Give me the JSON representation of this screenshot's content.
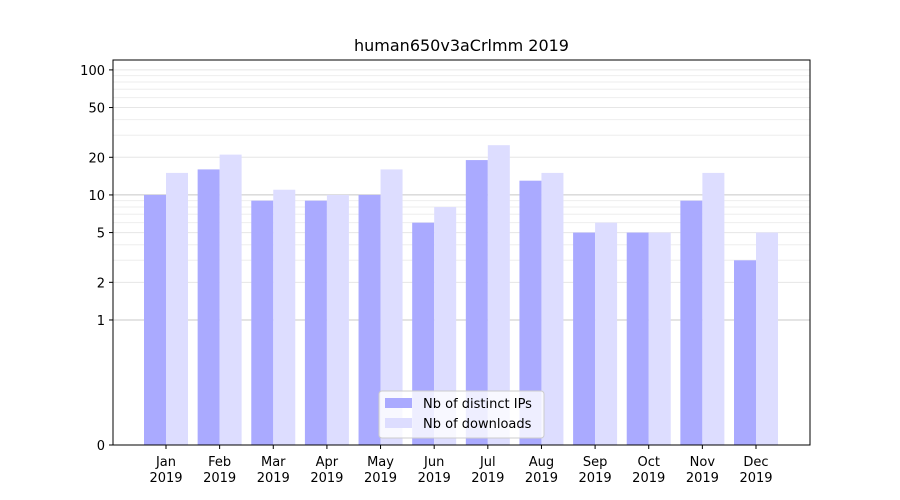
{
  "chart_data": {
    "type": "bar",
    "title": "human650v3aCrlmm 2019",
    "xlabel": "",
    "ylabel": "",
    "yscale": "symlog",
    "ylim": [
      0,
      120
    ],
    "yticks": [
      0,
      1,
      2,
      5,
      10,
      20,
      50,
      100
    ],
    "grid": "horizontal",
    "legend_position": "lower-center",
    "categories": [
      [
        "Jan",
        "2019"
      ],
      [
        "Feb",
        "2019"
      ],
      [
        "Mar",
        "2019"
      ],
      [
        "Apr",
        "2019"
      ],
      [
        "May",
        "2019"
      ],
      [
        "Jun",
        "2019"
      ],
      [
        "Jul",
        "2019"
      ],
      [
        "Aug",
        "2019"
      ],
      [
        "Sep",
        "2019"
      ],
      [
        "Oct",
        "2019"
      ],
      [
        "Nov",
        "2019"
      ],
      [
        "Dec",
        "2019"
      ]
    ],
    "series": [
      {
        "name": "Nb of distinct IPs",
        "color": "#aaaaff",
        "values": [
          10,
          16,
          9,
          9,
          10,
          6,
          19,
          13,
          5,
          5,
          9,
          3
        ]
      },
      {
        "name": "Nb of downloads",
        "color": "#ddddff",
        "values": [
          15,
          21,
          11,
          10,
          16,
          8,
          25,
          15,
          6,
          5,
          15,
          5
        ]
      }
    ]
  }
}
